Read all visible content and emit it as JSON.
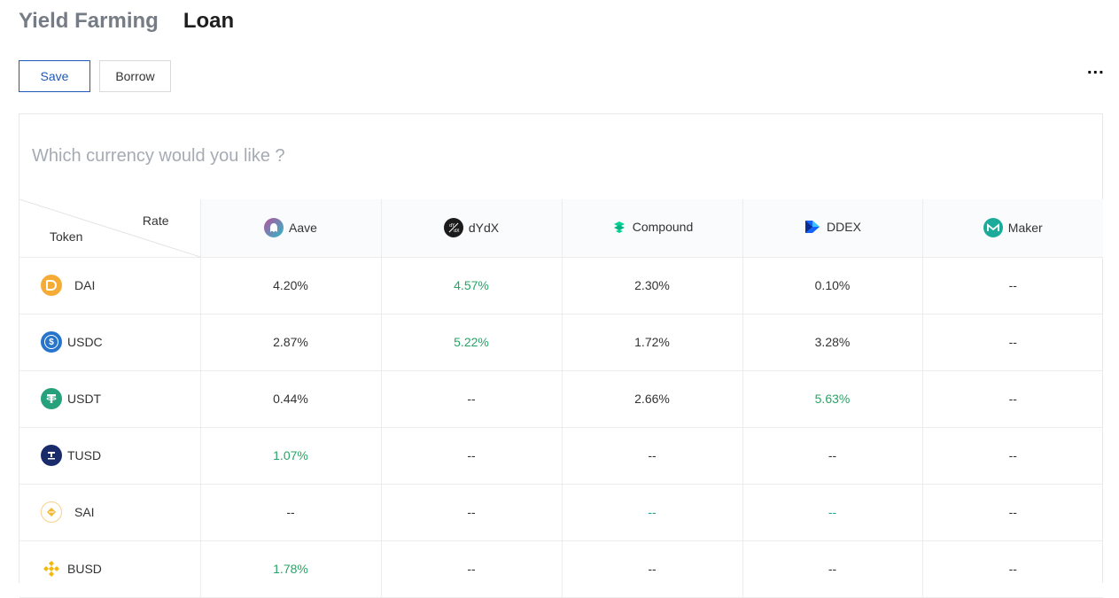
{
  "tabs": [
    {
      "label": "Yield Farming",
      "active": false
    },
    {
      "label": "Loan",
      "active": true
    }
  ],
  "buttons": {
    "save": "Save",
    "borrow": "Borrow"
  },
  "more_label": "...",
  "question": "Which currency would you like ?",
  "table": {
    "corner": {
      "rate": "Rate",
      "token": "Token"
    },
    "protocols": [
      {
        "name": "Aave",
        "icon": "aave-icon",
        "color": "#7b6fb0"
      },
      {
        "name": "dYdX",
        "icon": "dydx-icon",
        "color": "#1b1b1b"
      },
      {
        "name": "Compound",
        "icon": "compound-icon",
        "color": "#00d395"
      },
      {
        "name": "DDEX",
        "icon": "ddex-icon",
        "color": "#1463ff"
      },
      {
        "name": "Maker",
        "icon": "maker-icon",
        "color": "#1aab9b"
      }
    ],
    "rows": [
      {
        "token": "DAI",
        "icon": "dai-icon",
        "color": "#f5ac37",
        "rates": [
          "4.20%",
          "4.57%",
          "2.30%",
          "0.10%",
          "--"
        ],
        "highlight": [
          1
        ]
      },
      {
        "token": "USDC",
        "icon": "usdc-icon",
        "color": "#2775ca",
        "rates": [
          "2.87%",
          "5.22%",
          "1.72%",
          "3.28%",
          "--"
        ],
        "highlight": [
          1
        ]
      },
      {
        "token": "USDT",
        "icon": "usdt-icon",
        "color": "#26a17b",
        "rates": [
          "0.44%",
          "--",
          "2.66%",
          "5.63%",
          "--"
        ],
        "highlight": [
          3
        ]
      },
      {
        "token": "TUSD",
        "icon": "tusd-icon",
        "color": "#1a2b6b",
        "rates": [
          "1.07%",
          "--",
          "--",
          "--",
          "--"
        ],
        "highlight": [
          0
        ]
      },
      {
        "token": "SAI",
        "icon": "sai-icon",
        "color": "#f4b731",
        "rates": [
          "--",
          "--",
          "--",
          "--",
          "--"
        ],
        "highlight": [
          2,
          3
        ]
      },
      {
        "token": "BUSD",
        "icon": "busd-icon",
        "color": "#f0b90b",
        "rates": [
          "1.78%",
          "--",
          "--",
          "--",
          "--"
        ],
        "highlight": [
          0
        ]
      }
    ]
  },
  "colors": {
    "accent": "#1f58b8",
    "highlight": "#25a565"
  }
}
